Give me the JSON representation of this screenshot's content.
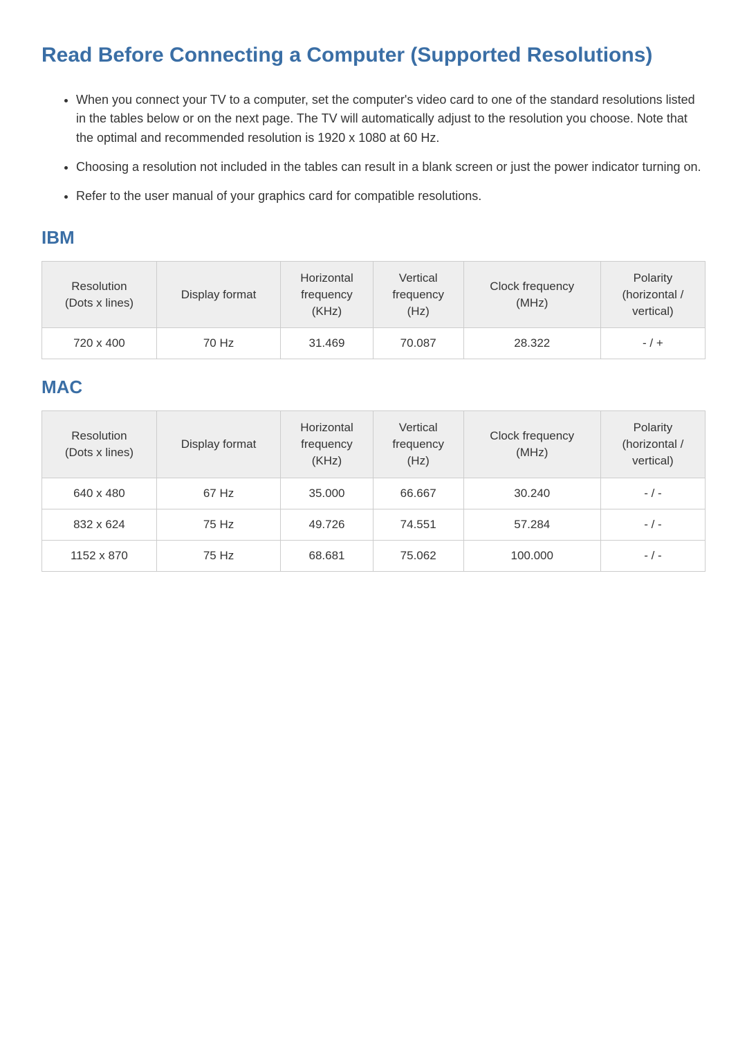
{
  "title": "Read Before Connecting a Computer (Supported Resolutions)",
  "bullets": [
    "When you connect your TV to a computer, set the computer's video card to one of the standard resolutions listed in the tables below or on the next page. The TV will automatically adjust to the resolution you choose. Note that the optimal and recommended resolution is 1920 x 1080 at 60 Hz.",
    "Choosing a resolution not included in the tables can result in a blank screen or just the power indicator turning on.",
    "Refer to the user manual of your graphics card for compatible resolutions."
  ],
  "sections": [
    {
      "heading": "IBM",
      "columns": [
        "Resolution\n(Dots x lines)",
        "Display format",
        "Horizontal\nfrequency\n(KHz)",
        "Vertical\nfrequency\n(Hz)",
        "Clock frequency\n(MHz)",
        "Polarity\n(horizontal /\nvertical)"
      ],
      "rows": [
        [
          "720 x 400",
          "70 Hz",
          "31.469",
          "70.087",
          "28.322",
          "- / +"
        ]
      ]
    },
    {
      "heading": "MAC",
      "columns": [
        "Resolution\n(Dots x lines)",
        "Display format",
        "Horizontal\nfrequency\n(KHz)",
        "Vertical\nfrequency\n(Hz)",
        "Clock frequency\n(MHz)",
        "Polarity\n(horizontal /\nvertical)"
      ],
      "rows": [
        [
          "640 x 480",
          "67 Hz",
          "35.000",
          "66.667",
          "30.240",
          "- / -"
        ],
        [
          "832 x 624",
          "75 Hz",
          "49.726",
          "74.551",
          "57.284",
          "- / -"
        ],
        [
          "1152 x 870",
          "75 Hz",
          "68.681",
          "75.062",
          "100.000",
          "- / -"
        ]
      ]
    }
  ],
  "styling": {
    "heading_color": "#3a6ea5",
    "text_color": "#333333",
    "th_bg": "#eeeeee",
    "border_color": "#cccccc",
    "bg_color": "#ffffff",
    "h1_fontsize": 30,
    "h2_fontsize": 26,
    "body_fontsize": 18,
    "table_fontsize": 17
  }
}
